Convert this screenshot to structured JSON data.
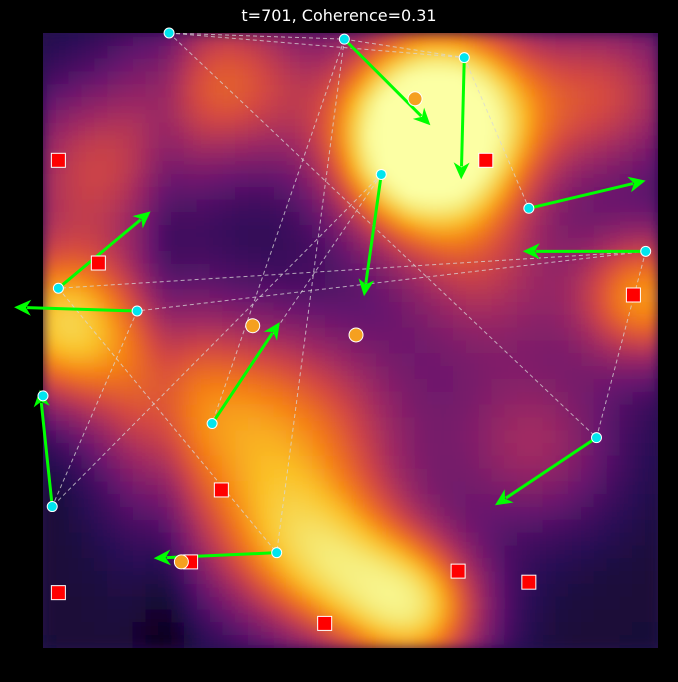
{
  "chart_data": {
    "type": "scatter",
    "title": "t=701, Coherence=0.31",
    "xlim": [
      0,
      1
    ],
    "ylim": [
      0,
      1
    ],
    "background_heatmap": {
      "colormap": "inferno",
      "hotspots": [
        {
          "x": 0.65,
          "y": 0.87,
          "intensity": 1.0,
          "spread": 0.11
        },
        {
          "x": 0.61,
          "y": 0.8,
          "intensity": 0.75,
          "spread": 0.1
        },
        {
          "x": 0.03,
          "y": 0.53,
          "intensity": 0.78,
          "spread": 0.09
        },
        {
          "x": 0.98,
          "y": 0.57,
          "intensity": 0.7,
          "spread": 0.08
        },
        {
          "x": 0.61,
          "y": 0.06,
          "intensity": 0.75,
          "spread": 0.08
        },
        {
          "x": 0.49,
          "y": 0.12,
          "intensity": 0.55,
          "spread": 0.09
        },
        {
          "x": 0.22,
          "y": 0.4,
          "intensity": 0.5,
          "spread": 0.12
        },
        {
          "x": 0.43,
          "y": 0.35,
          "intensity": 0.5,
          "spread": 0.13
        },
        {
          "x": 0.3,
          "y": 0.92,
          "intensity": 0.55,
          "spread": 0.1
        },
        {
          "x": 0.08,
          "y": 0.78,
          "intensity": 0.45,
          "spread": 0.1
        },
        {
          "x": 0.92,
          "y": 0.9,
          "intensity": 0.45,
          "spread": 0.1
        },
        {
          "x": 0.8,
          "y": 0.33,
          "intensity": 0.35,
          "spread": 0.1
        },
        {
          "x": 0.37,
          "y": 0.18,
          "intensity": 0.4,
          "spread": 0.1
        },
        {
          "x": 0.72,
          "y": 0.6,
          "intensity": 0.35,
          "spread": 0.1
        }
      ]
    },
    "agents": [
      {
        "x": 0.205,
        "y": 1.0,
        "dx": 0.0,
        "dy": 0.0
      },
      {
        "x": 0.49,
        "y": 0.99,
        "dx": 0.14,
        "dy": -0.14
      },
      {
        "x": 0.685,
        "y": 0.96,
        "dx": -0.005,
        "dy": -0.198
      },
      {
        "x": 0.55,
        "y": 0.77,
        "dx": -0.028,
        "dy": -0.198
      },
      {
        "x": 0.79,
        "y": 0.715,
        "dx": 0.19,
        "dy": 0.045
      },
      {
        "x": 0.98,
        "y": 0.645,
        "dx": -0.2,
        "dy": 0.0
      },
      {
        "x": 0.025,
        "y": 0.585,
        "dx": 0.15,
        "dy": 0.125
      },
      {
        "x": 0.153,
        "y": 0.548,
        "dx": -0.2,
        "dy": 0.006
      },
      {
        "x": 0.275,
        "y": 0.365,
        "dx": 0.11,
        "dy": 0.165
      },
      {
        "x": 0.0,
        "y": 0.41,
        "dx": 0.0,
        "dy": 0.0
      },
      {
        "x": 0.015,
        "y": 0.23,
        "dx": -0.02,
        "dy": 0.19
      },
      {
        "x": 0.9,
        "y": 0.342,
        "dx": -0.165,
        "dy": -0.11
      },
      {
        "x": 0.38,
        "y": 0.155,
        "dx": -0.2,
        "dy": -0.009
      }
    ],
    "links": [
      [
        0,
        1
      ],
      [
        0,
        2
      ],
      [
        1,
        2
      ],
      [
        0,
        11
      ],
      [
        1,
        8
      ],
      [
        1,
        12
      ],
      [
        2,
        4
      ],
      [
        3,
        8
      ],
      [
        3,
        10
      ],
      [
        5,
        6
      ],
      [
        5,
        7
      ],
      [
        5,
        11
      ],
      [
        6,
        12
      ],
      [
        7,
        10
      ]
    ],
    "targets": [
      {
        "x": 0.605,
        "y": 0.893
      },
      {
        "x": 0.509,
        "y": 0.509
      },
      {
        "x": 0.341,
        "y": 0.524
      },
      {
        "x": 0.225,
        "y": 0.14
      }
    ],
    "obstacles": [
      {
        "x": 0.025,
        "y": 0.793
      },
      {
        "x": 0.09,
        "y": 0.626
      },
      {
        "x": 0.72,
        "y": 0.793
      },
      {
        "x": 0.96,
        "y": 0.574
      },
      {
        "x": 0.29,
        "y": 0.257
      },
      {
        "x": 0.24,
        "y": 0.14
      },
      {
        "x": 0.025,
        "y": 0.09
      },
      {
        "x": 0.675,
        "y": 0.125
      },
      {
        "x": 0.79,
        "y": 0.107
      },
      {
        "x": 0.458,
        "y": 0.04
      }
    ],
    "colors": {
      "background": "#000000",
      "agent_fill": "#00e5ee",
      "agent_edge": "#ffffff",
      "arrow": "#00ff00",
      "link": "#d8d8d8",
      "target_fill": "#f5a020",
      "target_edge": "#ffffff",
      "obstacle_fill": "#ff0000",
      "obstacle_edge": "#ffffff"
    }
  }
}
